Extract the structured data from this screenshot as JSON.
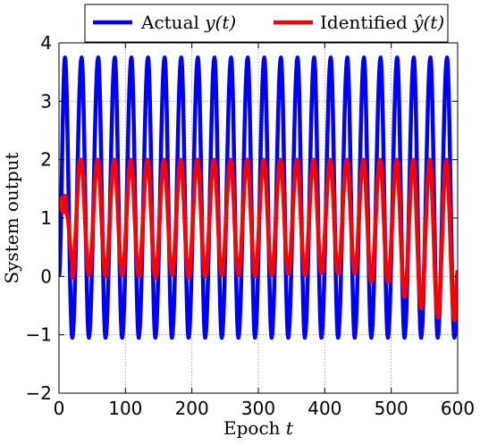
{
  "chart_data": {
    "type": "line",
    "xlabel": "Epoch t",
    "ylabel": "System output",
    "xlim": [
      0,
      600
    ],
    "ylim": [
      -2,
      4
    ],
    "xticks": [
      0,
      100,
      200,
      300,
      400,
      500,
      600
    ],
    "yticks": [
      -2,
      -1,
      0,
      1,
      2,
      3,
      4
    ],
    "grid": true,
    "legend_position": "top",
    "period": 25,
    "series": [
      {
        "name": "Actual y(t)",
        "color": "#0000ff",
        "min": -1.05,
        "max": 3.75,
        "peaks_x": [
          9,
          34,
          59,
          84,
          109,
          134,
          159,
          184,
          209,
          234,
          259,
          284,
          309,
          334,
          359,
          384,
          409,
          434,
          459,
          484,
          509,
          534,
          559,
          584
        ],
        "troughs_x": [
          20,
          45,
          70,
          95,
          120,
          145,
          170,
          195,
          220,
          245,
          270,
          295,
          320,
          345,
          370,
          395,
          420,
          445,
          470,
          495,
          520,
          545,
          570,
          595
        ]
      },
      {
        "name": "Identified ŷ(t)",
        "color": "#ff0000",
        "max": 2.0,
        "initial_values": [
          [
            0,
            1.3
          ],
          [
            2,
            1.15
          ],
          [
            4,
            1.35
          ],
          [
            6,
            1.1
          ],
          [
            9,
            1.38
          ],
          [
            12,
            1.05
          ]
        ],
        "trough_values": [
          [
            20,
            -0.02
          ],
          [
            45,
            0.02
          ],
          [
            70,
            0.0
          ],
          [
            95,
            0.02
          ],
          [
            120,
            0.0
          ],
          [
            145,
            -0.02
          ],
          [
            170,
            0.03
          ],
          [
            195,
            -0.02
          ],
          [
            220,
            0.0
          ],
          [
            245,
            0.02
          ],
          [
            270,
            0.02
          ],
          [
            295,
            0.0
          ],
          [
            320,
            0.02
          ],
          [
            345,
            0.05
          ],
          [
            370,
            0.02
          ],
          [
            395,
            0.06
          ],
          [
            420,
            0.05
          ],
          [
            445,
            0.05
          ],
          [
            470,
            -0.1
          ],
          [
            495,
            -0.1
          ],
          [
            520,
            -0.35
          ],
          [
            545,
            -0.55
          ],
          [
            570,
            -0.7
          ],
          [
            595,
            -0.75
          ]
        ]
      }
    ]
  },
  "legend": {
    "items": [
      {
        "label": "Actual ",
        "math": "y(t)",
        "color": "#0000ff"
      },
      {
        "label": "Identified ",
        "math": "ŷ(t)",
        "color": "#ff0000"
      }
    ]
  }
}
